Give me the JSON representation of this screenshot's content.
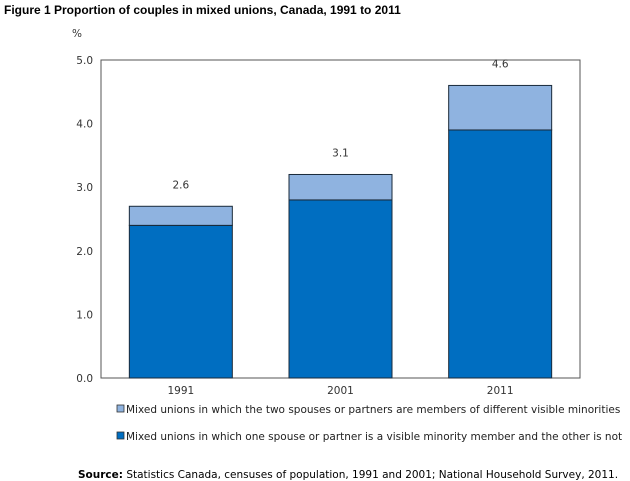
{
  "title": "Figure 1 Proportion of couples in mixed unions, Canada, 1991 to 2011",
  "source_label": "Source:",
  "source_text": " Statistics Canada, censuses of population, 1991 and 2001; National Household Survey, 2011.",
  "chart_data": {
    "type": "bar",
    "stacked": true,
    "title": "Figure 1 Proportion of couples in mixed unions, Canada, 1991 to 2011",
    "ylabel": "%",
    "xlabel": "",
    "ylim": [
      0,
      5
    ],
    "yticks": [
      "0.0",
      "1.0",
      "2.0",
      "3.0",
      "4.0",
      "5.0"
    ],
    "categories": [
      "1991",
      "2001",
      "2011"
    ],
    "series": [
      {
        "name": "Mixed unions in which one spouse or partner is a visible minority member and the other is not",
        "values": [
          2.4,
          2.8,
          3.9
        ],
        "color": "#006ec1"
      },
      {
        "name": "Mixed unions in which the two spouses or partners are members of different visible minorities",
        "values": [
          0.3,
          0.4,
          0.7
        ],
        "color": "#8fb3e0"
      }
    ],
    "total_labels": [
      "2.6",
      "3.1",
      "4.6"
    ],
    "legend_position": "bottom",
    "grid": false
  }
}
